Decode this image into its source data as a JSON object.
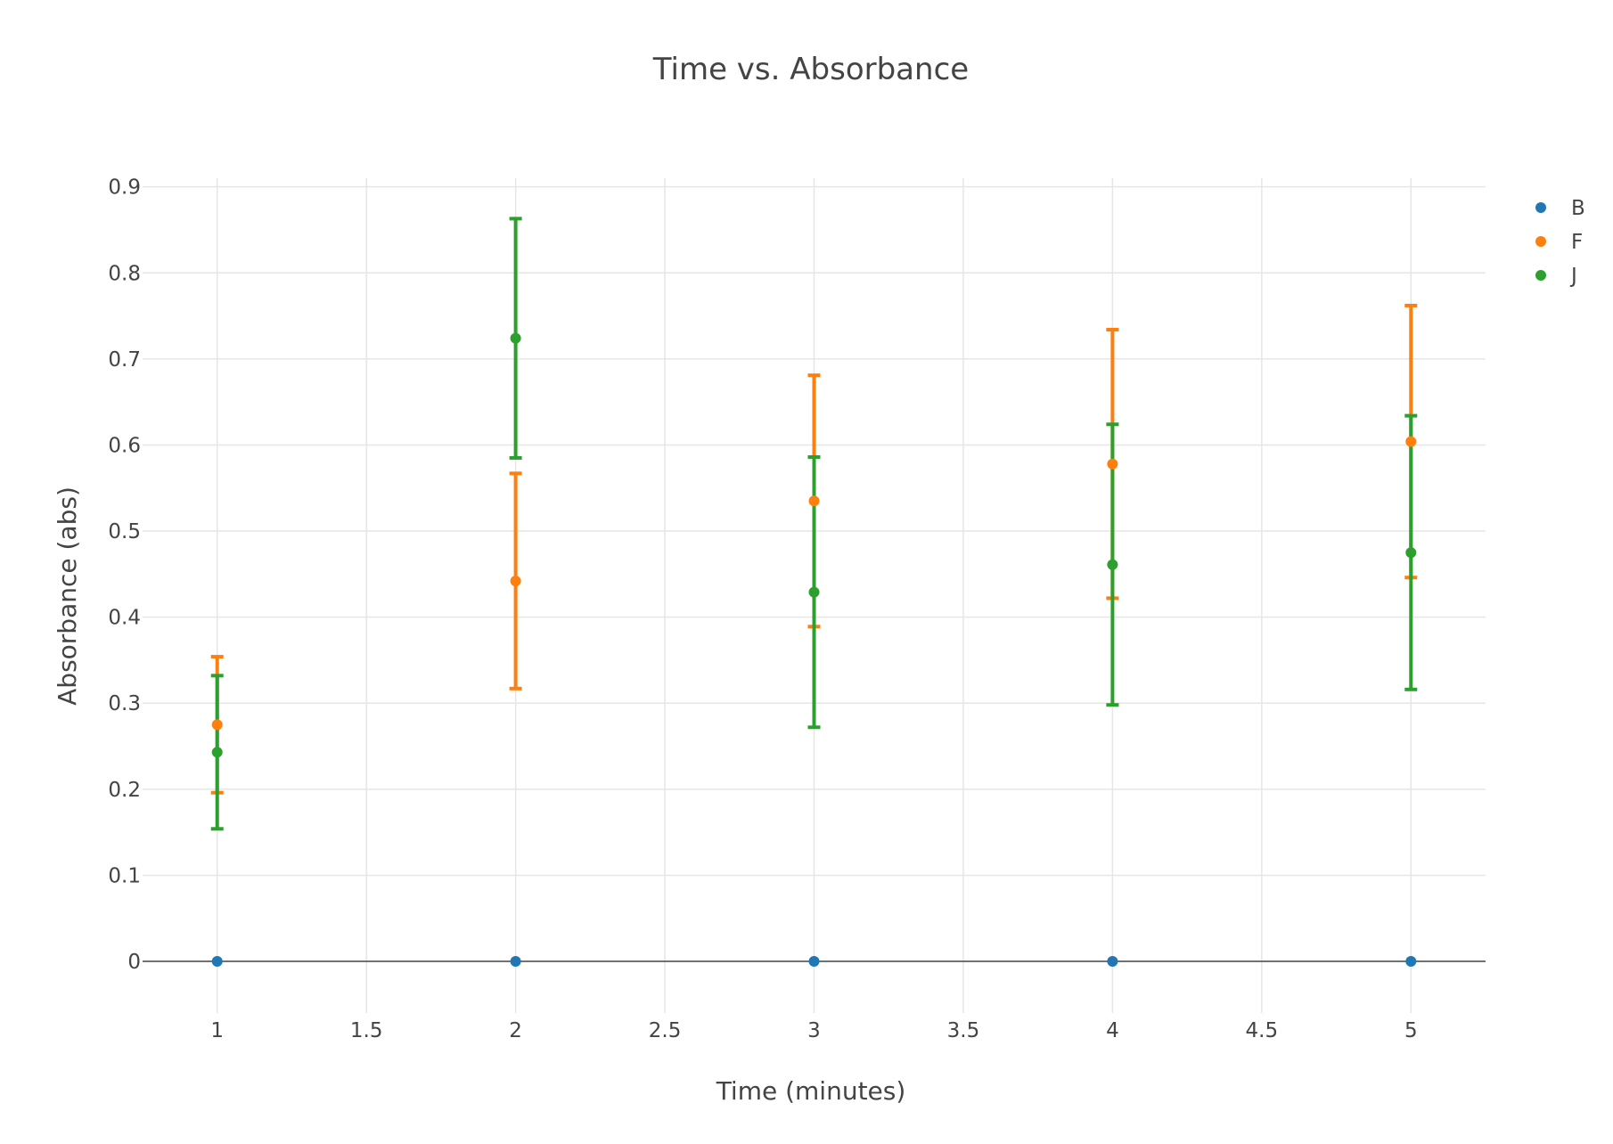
{
  "chart_data": {
    "type": "scatter",
    "title": "Time vs. Absorbance",
    "xlabel": "Time (minutes)",
    "ylabel": "Absorbance (abs)",
    "xlim": [
      0.75,
      5.25
    ],
    "ylim": [
      -0.06,
      0.91
    ],
    "x_ticks": [
      1,
      1.5,
      2,
      2.5,
      3,
      3.5,
      4,
      4.5,
      5
    ],
    "x_tick_labels": [
      "1",
      "1.5",
      "2",
      "2.5",
      "3",
      "3.5",
      "4",
      "4.5",
      "5"
    ],
    "y_ticks": [
      0,
      0.1,
      0.2,
      0.3,
      0.4,
      0.5,
      0.6,
      0.7,
      0.8,
      0.9
    ],
    "y_tick_labels": [
      "0",
      "0.1",
      "0.2",
      "0.3",
      "0.4",
      "0.5",
      "0.6",
      "0.7",
      "0.8",
      "0.9"
    ],
    "grid": true,
    "legend_position": "top-right",
    "x": [
      1,
      2,
      3,
      4,
      5
    ],
    "series": [
      {
        "name": "B",
        "color": "#1f77b4",
        "values": [
          0,
          0,
          0,
          0,
          0
        ],
        "error": [
          0,
          0,
          0,
          0,
          0
        ]
      },
      {
        "name": "F",
        "color": "#ff7f0e",
        "values": [
          0.275,
          0.442,
          0.535,
          0.578,
          0.604
        ],
        "error": [
          0.079,
          0.125,
          0.146,
          0.156,
          0.158
        ]
      },
      {
        "name": "J",
        "color": "#2ca02c",
        "values": [
          0.243,
          0.724,
          0.429,
          0.461,
          0.475
        ],
        "error": [
          0.089,
          0.139,
          0.157,
          0.163,
          0.159
        ]
      }
    ]
  }
}
